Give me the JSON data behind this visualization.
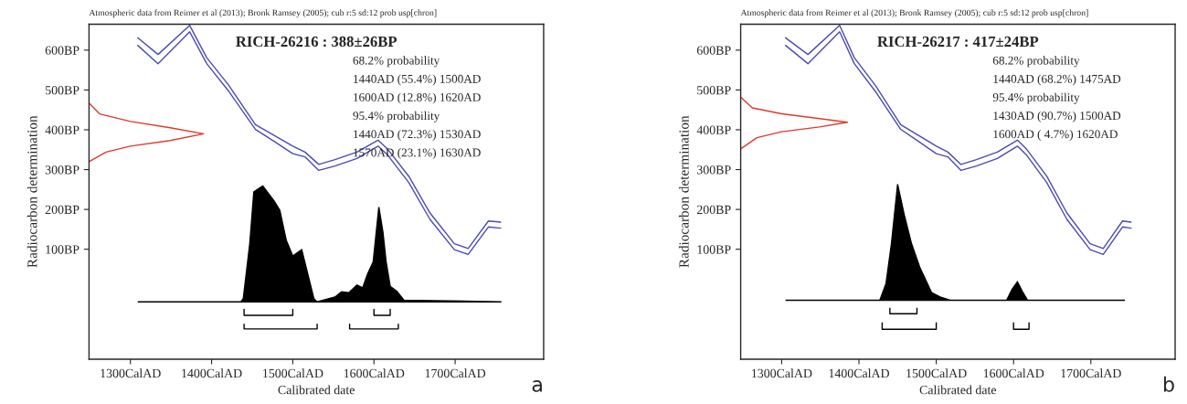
{
  "chart_data": [
    {
      "type": "line",
      "title": "RICH-26216 : 388±26BP",
      "subtitle": "Atmospheric data from Reimer et al (2013); Bronk Ramsey (2005); cub r:5 sd:12 prob usp[chron]",
      "xlabel": "Calibrated date",
      "ylabel": "Radiocarbon determination",
      "annotations": [
        "68.2% probability",
        "1440AD (55.4%) 1500AD",
        "1600AD (12.8%) 1620AD",
        "95.4% probability",
        "1440AD (72.3%) 1530AD",
        "1570AD (23.1%) 1630AD",
        "a"
      ],
      "xlim": [
        1249,
        1809
      ],
      "ylim": [
        -176,
        665
      ],
      "xticks": [
        {
          "value": 1300,
          "label": "1300CalAD"
        },
        {
          "value": 1400,
          "label": "1400CalAD"
        },
        {
          "value": 1500,
          "label": "1500CalAD"
        },
        {
          "value": 1600,
          "label": "1600CalAD"
        },
        {
          "value": 1700,
          "label": "1700CalAD"
        }
      ],
      "yticks": [
        {
          "value": 100,
          "label": "100BP"
        },
        {
          "value": 200,
          "label": "200BP"
        },
        {
          "value": 300,
          "label": "300BP"
        },
        {
          "value": 400,
          "label": "400BP"
        },
        {
          "value": 500,
          "label": "500BP"
        },
        {
          "value": 600,
          "label": "600BP"
        }
      ],
      "series": [
        {
          "type": "line",
          "color": "#4a4ab4",
          "x": [
            1309,
            1334,
            1373,
            1394,
            1421,
            1454,
            1477,
            1500,
            1515,
            1532,
            1552,
            1579,
            1605,
            1617,
            1643,
            1669,
            1699,
            1716,
            1741,
            1756
          ],
          "values": [
            631,
            589,
            662,
            581,
            512,
            413,
            386,
            359,
            344,
            313,
            325,
            344,
            374,
            351,
            283,
            191,
            114,
            102,
            171,
            168
          ]
        },
        {
          "type": "line",
          "color": "#4a4ab4",
          "x": [
            1309,
            1334,
            1373,
            1394,
            1421,
            1454,
            1477,
            1500,
            1515,
            1532,
            1552,
            1579,
            1605,
            1617,
            1643,
            1669,
            1699,
            1716,
            1741,
            1756
          ],
          "values": [
            612,
            566,
            646,
            566,
            497,
            401,
            371,
            340,
            332,
            298,
            309,
            328,
            359,
            336,
            267,
            175,
            99,
            87,
            156,
            153
          ]
        },
        {
          "type": "line",
          "color": "#e03a28",
          "x": [
            1249,
            1262,
            1300,
            1349,
            1390,
            1349,
            1300,
            1270,
            1249
          ],
          "values": [
            467,
            440,
            421,
            405,
            390,
            373,
            359,
            344,
            320
          ]
        },
        {
          "type": "area",
          "color": "#000000",
          "x": [
            1309,
            1436,
            1439,
            1447,
            1452,
            1463,
            1477,
            1484,
            1492,
            1500,
            1511,
            1526,
            1530,
            1552,
            1560,
            1569,
            1579,
            1586,
            1592,
            1599,
            1606,
            1611,
            1615,
            1620,
            1628,
            1637,
            1757
          ],
          "values": [
            -32,
            -32,
            -24,
            114,
            244,
            259,
            221,
            198,
            122,
            83,
            99,
            -24,
            -32,
            -20,
            -7,
            -9,
            10,
            3,
            37,
            68,
            206,
            144,
            68,
            7,
            -5,
            -28,
            -32
          ]
        },
        {
          "type": "line",
          "color": "#000000",
          "x": [
            1440,
            1440,
            1500,
            1500
          ],
          "values": [
            -51,
            -66,
            -66,
            -51
          ]
        },
        {
          "type": "line",
          "color": "#000000",
          "x": [
            1600,
            1600,
            1620,
            1620
          ],
          "values": [
            -51,
            -66,
            -66,
            -51
          ]
        },
        {
          "type": "line",
          "color": "#000000",
          "x": [
            1440,
            1440,
            1530,
            1530
          ],
          "values": [
            -88,
            -100,
            -100,
            -88
          ]
        },
        {
          "type": "line",
          "color": "#000000",
          "x": [
            1570,
            1570,
            1630,
            1630
          ],
          "values": [
            -88,
            -100,
            -100,
            -88
          ]
        }
      ]
    },
    {
      "type": "line",
      "title": "RICH-26217 : 417±24BP",
      "subtitle": "Atmospheric data from Reimer et al (2013); Bronk Ramsey (2005); cub r:5 sd:12 prob usp[chron]",
      "xlabel": "Calibrated date",
      "ylabel": "Radiocarbon determination",
      "annotations": [
        "68.2% probability",
        "1440AD (68.2%) 1475AD",
        "95.4% probability",
        "1430AD (90.7%) 1500AD",
        "1600AD ( 4.7%) 1620AD",
        "b"
      ],
      "xlim": [
        1247,
        1809
      ],
      "ylim": [
        -176,
        665
      ],
      "xticks": [
        {
          "value": 1300,
          "label": "1300CalAD"
        },
        {
          "value": 1400,
          "label": "1400CalAD"
        },
        {
          "value": 1500,
          "label": "1500CalAD"
        },
        {
          "value": 1600,
          "label": "1600CalAD"
        },
        {
          "value": 1700,
          "label": "1700CalAD"
        }
      ],
      "yticks": [
        {
          "value": 100,
          "label": "100BP"
        },
        {
          "value": 200,
          "label": "200BP"
        },
        {
          "value": 300,
          "label": "300BP"
        },
        {
          "value": 400,
          "label": "400BP"
        },
        {
          "value": 500,
          "label": "500BP"
        },
        {
          "value": 600,
          "label": "600BP"
        }
      ],
      "series": [
        {
          "type": "line",
          "color": "#4a4ab4",
          "x": [
            1305,
            1334,
            1375,
            1394,
            1421,
            1454,
            1477,
            1500,
            1515,
            1532,
            1552,
            1579,
            1605,
            1617,
            1643,
            1669,
            1699,
            1716,
            1741,
            1752
          ],
          "values": [
            631,
            589,
            662,
            581,
            512,
            413,
            386,
            359,
            344,
            313,
            325,
            344,
            374,
            351,
            283,
            191,
            114,
            102,
            171,
            168
          ]
        },
        {
          "type": "line",
          "color": "#4a4ab4",
          "x": [
            1305,
            1334,
            1375,
            1394,
            1421,
            1454,
            1477,
            1500,
            1515,
            1532,
            1552,
            1579,
            1605,
            1617,
            1643,
            1669,
            1699,
            1716,
            1741,
            1752
          ],
          "values": [
            612,
            566,
            646,
            566,
            497,
            401,
            371,
            340,
            332,
            298,
            309,
            328,
            359,
            336,
            267,
            175,
            99,
            87,
            156,
            153
          ]
        },
        {
          "type": "line",
          "color": "#e03a28",
          "x": [
            1247,
            1262,
            1300,
            1349,
            1385,
            1349,
            1300,
            1268,
            1247
          ],
          "values": [
            482,
            455,
            440,
            428,
            419,
            407,
            395,
            380,
            352
          ]
        },
        {
          "type": "area",
          "color": "#000000",
          "x": [
            1305,
            1427,
            1435,
            1442,
            1450,
            1459,
            1468,
            1479,
            1494,
            1505,
            1518,
            1591,
            1598,
            1605,
            1611,
            1618,
            1744
          ],
          "values": [
            -28,
            -28,
            14,
            114,
            263,
            183,
            114,
            53,
            -9,
            -20,
            -28,
            -28,
            -1,
            18,
            -5,
            -28,
            -28
          ]
        },
        {
          "type": "line",
          "color": "#000000",
          "x": [
            1440,
            1440,
            1475,
            1475
          ],
          "values": [
            -48,
            -62,
            -62,
            -48
          ]
        },
        {
          "type": "line",
          "color": "#000000",
          "x": [
            1430,
            1430,
            1500,
            1500
          ],
          "values": [
            -85,
            -101,
            -101,
            -85
          ]
        },
        {
          "type": "line",
          "color": "#000000",
          "x": [
            1600,
            1600,
            1620,
            1620
          ],
          "values": [
            -85,
            -101,
            -101,
            -85
          ]
        }
      ]
    }
  ]
}
